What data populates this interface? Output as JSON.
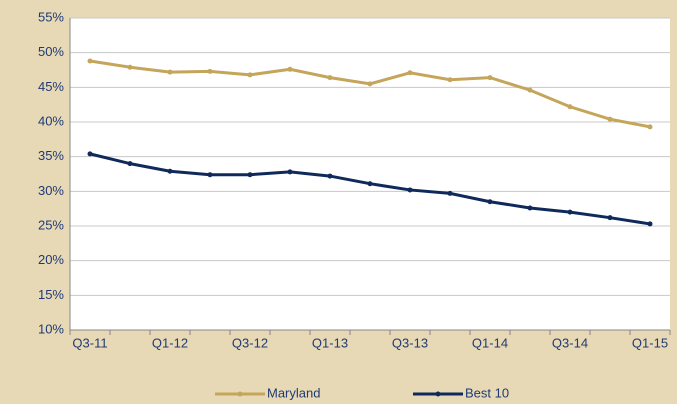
{
  "chart_data": {
    "type": "line",
    "categories": [
      "Q3-11",
      null,
      "Q1-12",
      null,
      "Q3-12",
      null,
      "Q1-13",
      null,
      "Q3-13",
      null,
      "Q1-14",
      null,
      "Q3-14",
      null,
      "Q1-15"
    ],
    "series": [
      {
        "name": "Maryland",
        "color": "#c4a55a",
        "values": [
          48.8,
          47.9,
          47.2,
          47.3,
          46.8,
          47.6,
          46.4,
          45.5,
          47.1,
          46.1,
          46.4,
          44.6,
          42.2,
          40.4,
          39.3
        ]
      },
      {
        "name": "Best 10",
        "color": "#0f2a5a",
        "values": [
          35.4,
          34.0,
          32.9,
          32.4,
          32.4,
          32.8,
          32.2,
          31.1,
          30.2,
          29.7,
          28.5,
          27.6,
          27.0,
          26.2,
          25.3
        ]
      }
    ],
    "ylim": [
      10,
      55
    ],
    "yticks": [
      {
        "value": 10,
        "label": "10%"
      },
      {
        "value": 15,
        "label": "15%"
      },
      {
        "value": 20,
        "label": "20%"
      },
      {
        "value": 25,
        "label": "25%"
      },
      {
        "value": 30,
        "label": "30%"
      },
      {
        "value": 35,
        "label": "35%"
      },
      {
        "value": 40,
        "label": "40%"
      },
      {
        "value": 45,
        "label": "45%"
      },
      {
        "value": 50,
        "label": "50%"
      },
      {
        "value": 55,
        "label": "55%"
      }
    ],
    "grid": true,
    "legend": "bottom"
  }
}
